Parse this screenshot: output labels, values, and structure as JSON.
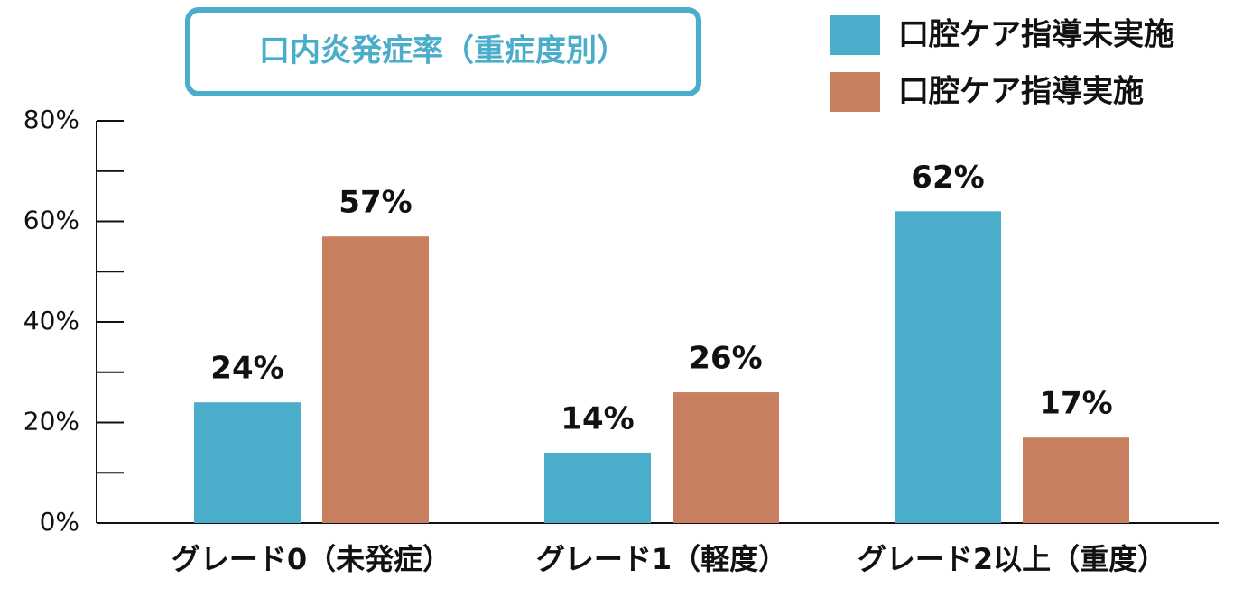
{
  "chart_data": {
    "type": "bar",
    "title": "口内炎発症率（重症度別）",
    "categories": [
      "グレード0（未発症）",
      "グレード1（軽度）",
      "グレード2以上（重度）"
    ],
    "series": [
      {
        "name": "口腔ケア指導未実施",
        "color": "#4aaecb",
        "values": [
          24,
          14,
          62
        ],
        "value_labels": [
          "24%",
          "14%",
          "62%"
        ]
      },
      {
        "name": "口腔ケア指導実施",
        "color": "#c87f60",
        "values": [
          57,
          26,
          17
        ],
        "value_labels": [
          "57%",
          "26%",
          "17%"
        ]
      }
    ],
    "ylim": [
      0,
      80
    ],
    "yticks": [
      {
        "value": 0,
        "label": "0%"
      },
      {
        "value": 20,
        "label": "20%"
      },
      {
        "value": 40,
        "label": "40%"
      },
      {
        "value": 60,
        "label": "60%"
      },
      {
        "value": 80,
        "label": "80%"
      }
    ],
    "minor_yticks": [
      10,
      30,
      50,
      70
    ],
    "legend": "top-right"
  }
}
